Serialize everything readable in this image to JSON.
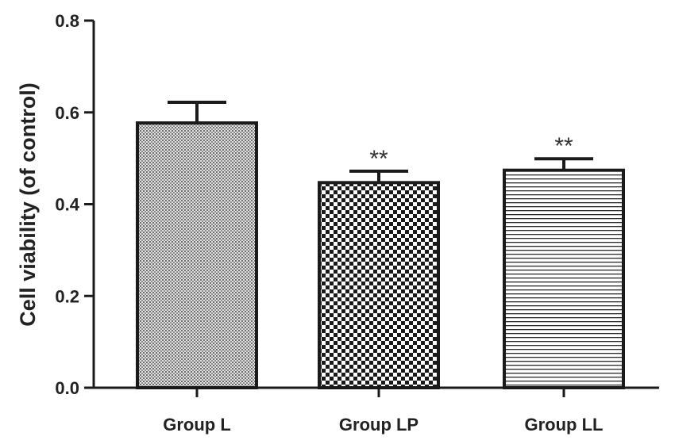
{
  "chart_data": {
    "type": "bar",
    "title": "",
    "xlabel": "",
    "ylabel": "Cell viability (of control)",
    "ylim": [
      0,
      0.8
    ],
    "yticks": [
      "0.0",
      "0.2",
      "0.4",
      "0.6",
      "0.8"
    ],
    "categories": [
      "Group L",
      "Group LP",
      "Group LL"
    ],
    "values": [
      0.577,
      0.447,
      0.474
    ],
    "errors": [
      0.045,
      0.025,
      0.025
    ],
    "annotations": [
      "",
      "**",
      "**"
    ],
    "fill_patterns": [
      "fine-dots",
      "checkerboard",
      "horizontal-lines"
    ],
    "grid": false,
    "legend": "none",
    "colors": {
      "bar_edge": "#1a1a1a",
      "axis": "#1a1a1a",
      "text": "#222222"
    }
  }
}
